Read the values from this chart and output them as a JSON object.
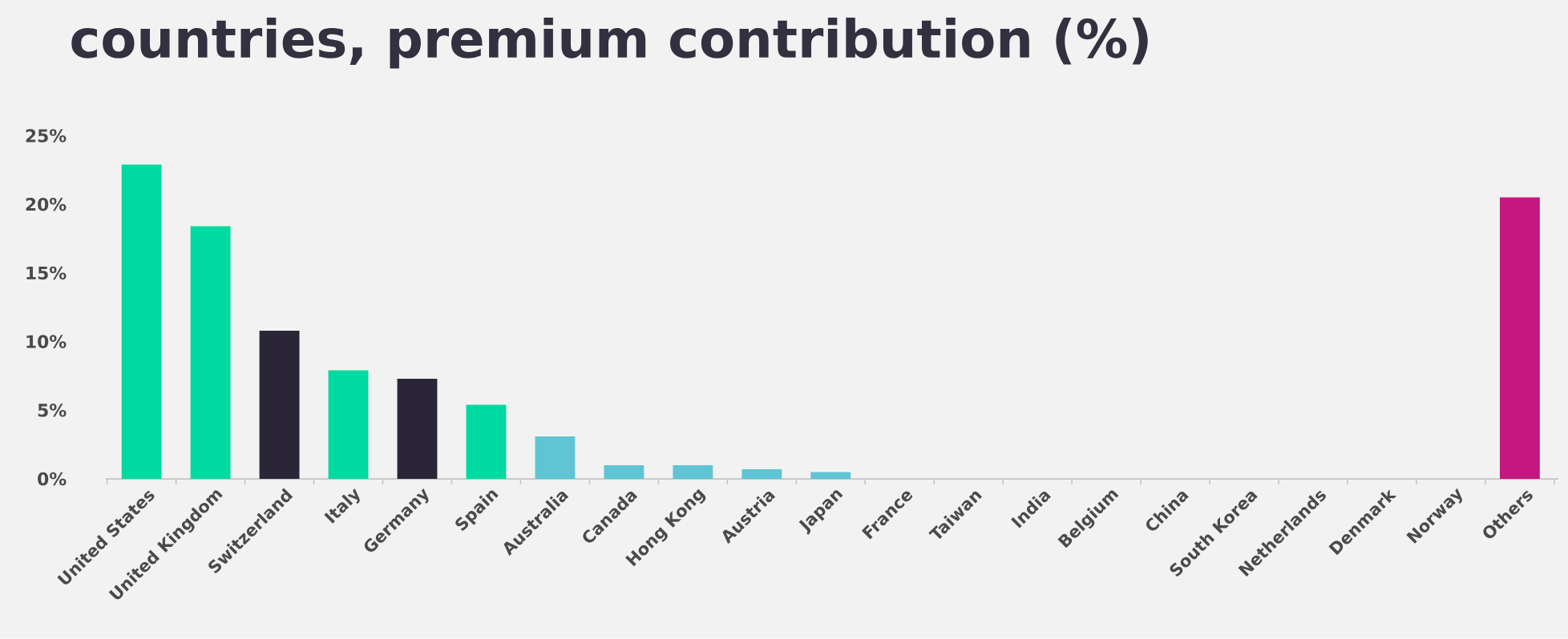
{
  "chart_data": {
    "type": "bar",
    "title": "countries, premium contribution (%)",
    "categories": [
      "United States",
      "United Kingdom",
      "Switzerland",
      "Italy",
      "Germany",
      "Spain",
      "Australia",
      "Canada",
      "Hong Kong",
      "Austria",
      "Japan",
      "France",
      "Taiwan",
      "India",
      "Belgium",
      "China",
      "South Korea",
      "Netherlands",
      "Denmark",
      "Norway",
      "Others"
    ],
    "values": [
      22.9,
      18.4,
      10.8,
      7.9,
      7.3,
      5.4,
      3.1,
      1.0,
      1.0,
      0.7,
      0.5,
      0,
      0,
      0,
      0,
      0,
      0,
      0,
      0,
      0,
      20.5
    ],
    "colors": [
      "#00d9a0",
      "#00d9a0",
      "#2a2637",
      "#00d9a0",
      "#2a2637",
      "#00d9a0",
      "#5fc5d5",
      "#5fc5d5",
      "#5fc5d5",
      "#5fc5d5",
      "#5fc5d5",
      "#5fc5d5",
      "#5fc5d5",
      "#5fc5d5",
      "#5fc5d5",
      "#5fc5d5",
      "#5fc5d5",
      "#5fc5d5",
      "#5fc5d5",
      "#5fc5d5",
      "#c4177f"
    ],
    "ylim": [
      0,
      25
    ],
    "yticks": [
      {
        "value": 0,
        "label": "0%"
      },
      {
        "value": 5,
        "label": "5%"
      },
      {
        "value": 10,
        "label": "10%"
      },
      {
        "value": 15,
        "label": "15%"
      },
      {
        "value": 20,
        "label": "20%"
      },
      {
        "value": 25,
        "label": "25%"
      }
    ]
  }
}
